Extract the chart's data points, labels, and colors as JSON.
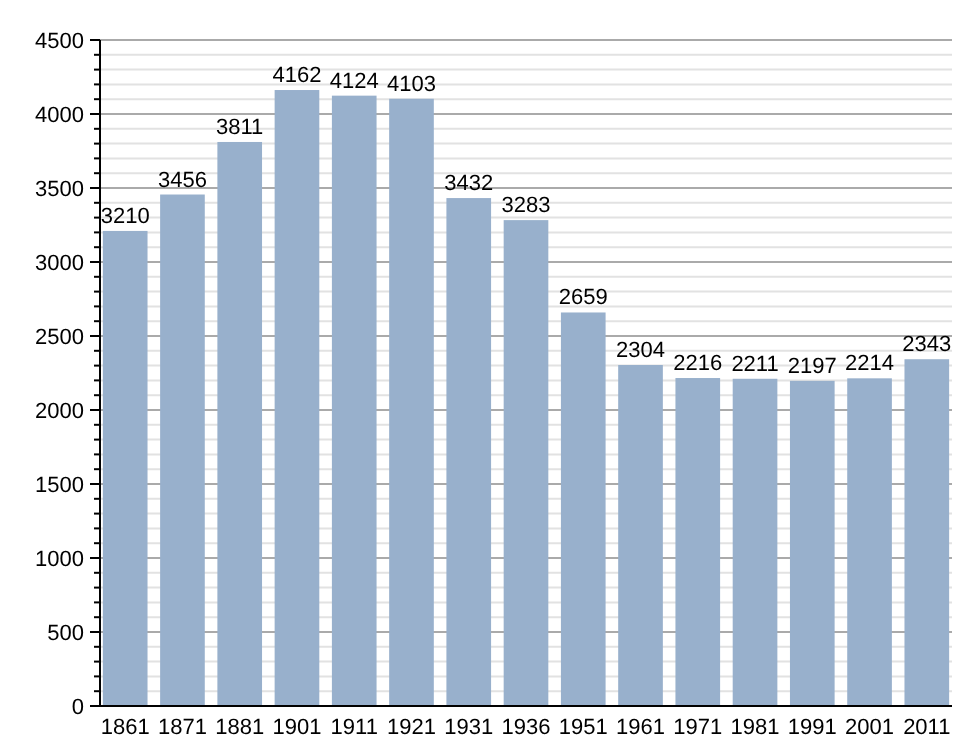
{
  "chart_data": {
    "type": "bar",
    "categories": [
      "1861",
      "1871",
      "1881",
      "1901",
      "1911",
      "1921",
      "1931",
      "1936",
      "1951",
      "1961",
      "1971",
      "1981",
      "1991",
      "2001",
      "2011"
    ],
    "values": [
      3210,
      3456,
      3811,
      4162,
      4124,
      4103,
      3432,
      3283,
      2659,
      2304,
      2216,
      2211,
      2197,
      2214,
      2343
    ],
    "color": "#98b0cc",
    "data_labels": true,
    "grid": "y",
    "ylim": [
      0,
      4500
    ],
    "yticks": [
      0,
      {
        "value": 100,
        "label": null
      },
      {
        "value": 200,
        "label": null
      },
      {
        "value": 300,
        "label": null
      },
      {
        "value": 400,
        "label": null
      },
      500,
      {
        "value": 600,
        "label": null
      },
      {
        "value": 700,
        "label": null
      },
      {
        "value": 800,
        "label": null
      },
      {
        "value": 900,
        "label": null
      },
      1000,
      {
        "value": 1100,
        "label": null
      },
      {
        "value": 1200,
        "label": null
      },
      {
        "value": 1300,
        "label": null
      },
      {
        "value": 1400,
        "label": null
      },
      1500,
      {
        "value": 1600,
        "label": null
      },
      {
        "value": 1700,
        "label": null
      },
      {
        "value": 1800,
        "label": null
      },
      {
        "value": 1900,
        "label": null
      },
      2000,
      {
        "value": 2100,
        "label": null
      },
      {
        "value": 2200,
        "label": null
      },
      {
        "value": 2300,
        "label": null
      },
      {
        "value": 2400,
        "label": null
      },
      2500,
      {
        "value": 2600,
        "label": null
      },
      {
        "value": 2700,
        "label": null
      },
      {
        "value": 2800,
        "label": null
      },
      {
        "value": 2900,
        "label": null
      },
      3000,
      {
        "value": 3100,
        "label": null
      },
      {
        "value": 3200,
        "label": null
      },
      {
        "value": 3300,
        "label": null
      },
      {
        "value": 3400,
        "label": null
      },
      3500,
      {
        "value": 3600,
        "label": null
      },
      {
        "value": 3700,
        "label": null
      },
      {
        "value": 3800,
        "label": null
      },
      {
        "value": 3900,
        "label": null
      },
      4000,
      {
        "value": 4100,
        "label": null
      },
      {
        "value": 4200,
        "label": null
      },
      {
        "value": 4300,
        "label": null
      },
      {
        "value": 4400,
        "label": null
      },
      4500
    ]
  }
}
